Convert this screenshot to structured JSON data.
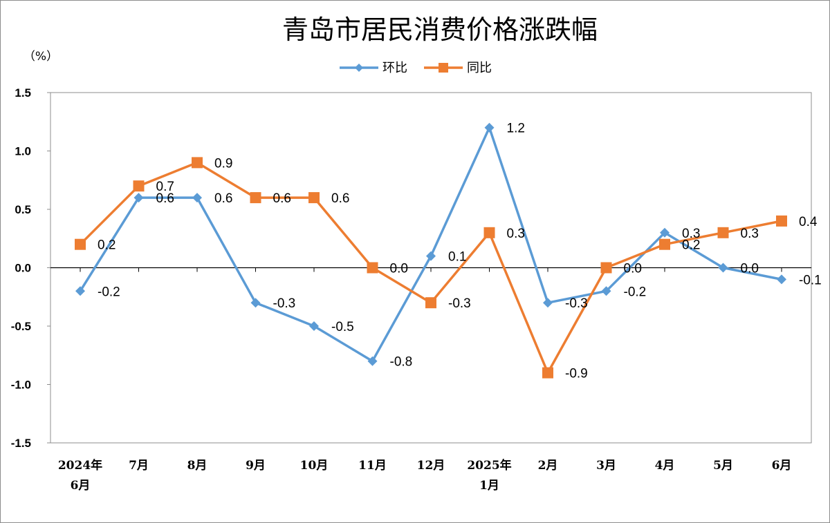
{
  "chart_data": {
    "type": "line",
    "title": "青岛市居民消费价格涨跌幅",
    "unit_label": "（%）",
    "categories": [
      [
        "2024年",
        "6月"
      ],
      [
        "7月"
      ],
      [
        "8月"
      ],
      [
        "9月"
      ],
      [
        "10月"
      ],
      [
        "11月"
      ],
      [
        "12月"
      ],
      [
        "2025年",
        "1月"
      ],
      [
        "2月"
      ],
      [
        "3月"
      ],
      [
        "4月"
      ],
      [
        "5月"
      ],
      [
        "6月"
      ]
    ],
    "ylim": [
      -1.5,
      1.5
    ],
    "yticks": [
      "1.5",
      "1.0",
      "0.5",
      "0.0",
      "-0.5",
      "-1.0",
      "-1.5"
    ],
    "grid": false,
    "legend_position": "top-center",
    "series": [
      {
        "name": "环比",
        "color": "#5B9BD5",
        "marker": "diamond",
        "values": [
          -0.2,
          0.6,
          0.6,
          -0.3,
          -0.5,
          -0.8,
          0.1,
          1.2,
          -0.3,
          -0.2,
          0.3,
          0.0,
          -0.1
        ],
        "labels": [
          "-0.2",
          "0.6",
          "0.6",
          "-0.3",
          "-0.5",
          "-0.8",
          "0.1",
          "1.2",
          "-0.3",
          "-0.2",
          "0.3",
          "0.0",
          "-0.1"
        ]
      },
      {
        "name": "同比",
        "color": "#ED7D31",
        "marker": "square",
        "values": [
          0.2,
          0.7,
          0.9,
          0.6,
          0.6,
          0.0,
          -0.3,
          0.3,
          -0.9,
          0.0,
          0.2,
          0.3,
          0.4
        ],
        "labels": [
          "0.2",
          "0.7",
          "0.9",
          "0.6",
          "0.6",
          "0.0",
          "-0.3",
          "0.3",
          "-0.9",
          "0.0",
          "0.2",
          "0.3",
          "0.4"
        ]
      }
    ]
  }
}
